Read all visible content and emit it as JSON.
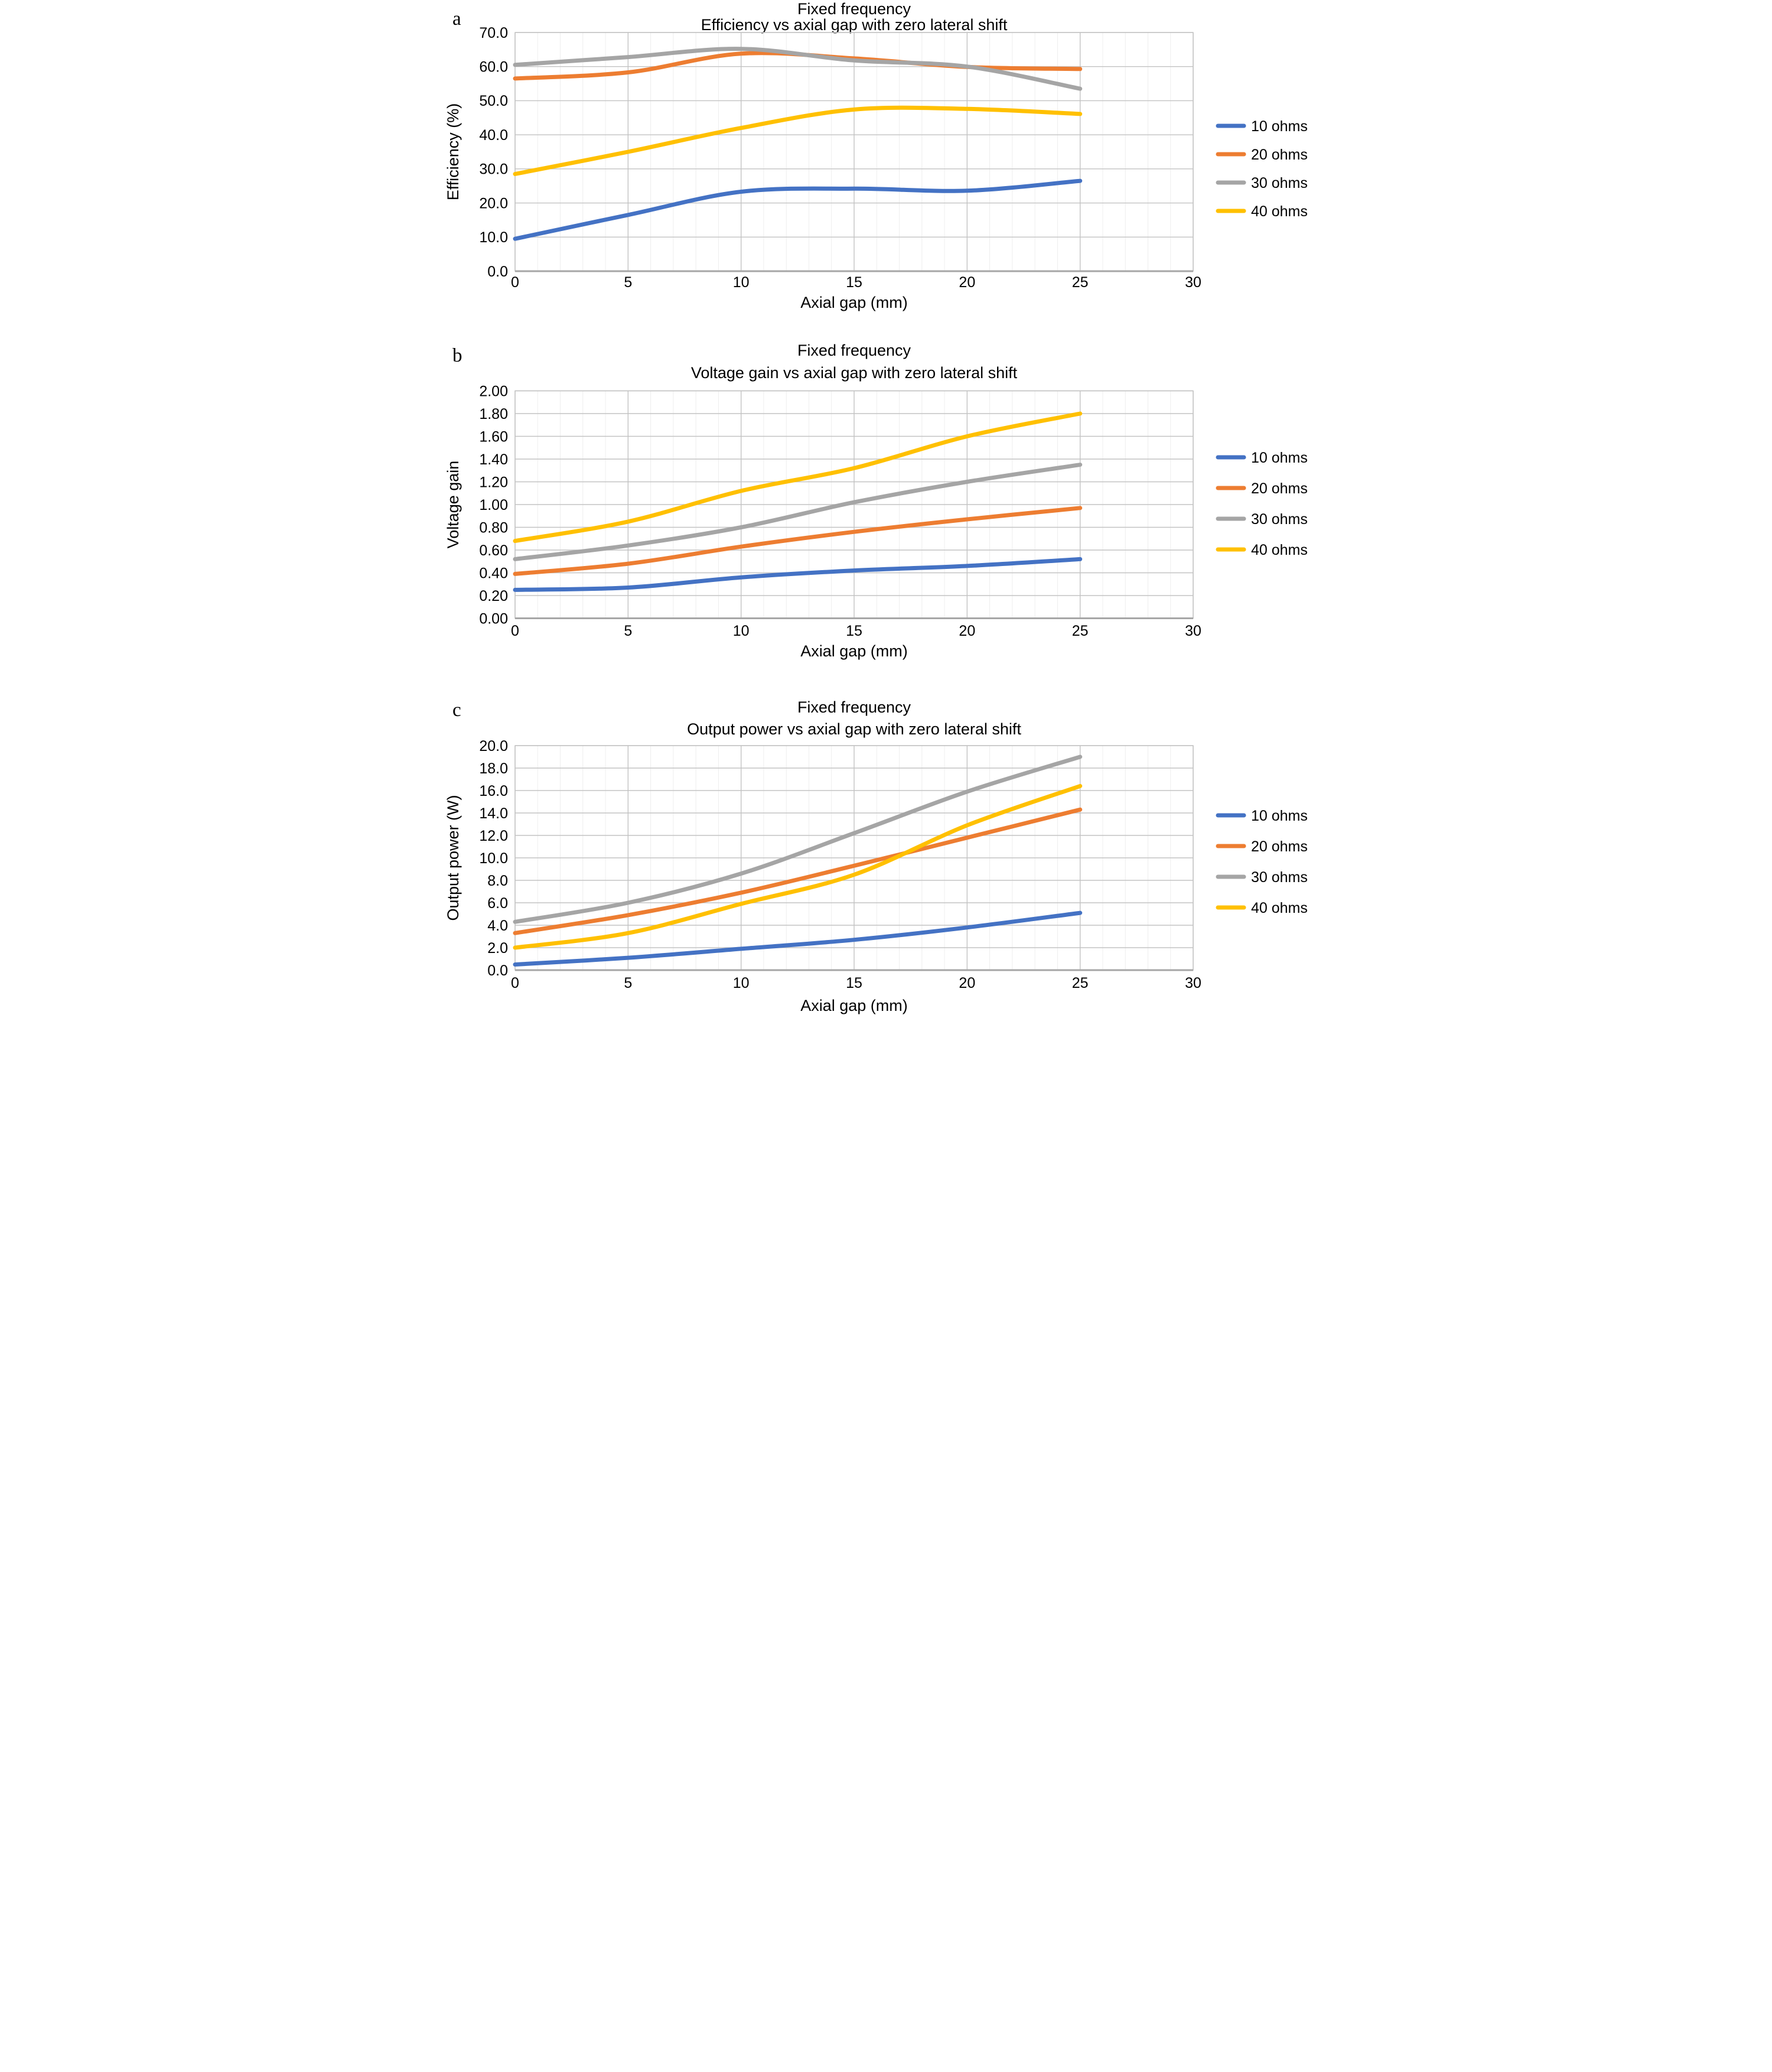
{
  "figure_background": "#ffffff",
  "grid_major_color": "#c3c3c3",
  "grid_minor_color": "#ececec",
  "axis_line_color": "#a6a6a6",
  "chart_data": [
    {
      "type": "line",
      "panel_label": "a",
      "title": "Fixed frequency",
      "subtitle": "Efficiency vs axial gap with zero lateral shift",
      "xlabel": "Axial gap (mm)",
      "ylabel": "Efficiency (%)",
      "x": [
        0,
        5,
        10,
        15,
        20,
        25
      ],
      "xlim": [
        0,
        30
      ],
      "x_major": 5,
      "x_minor": 1,
      "ylim": [
        0,
        70
      ],
      "y_step": 10,
      "y_decimals": 1,
      "grid": true,
      "legend_position": "right",
      "series": [
        {
          "name": "10 ohms",
          "color": "#4472C4",
          "values": [
            9.5,
            16.5,
            23.3,
            24.2,
            23.6,
            26.5
          ]
        },
        {
          "name": "20 ohms",
          "color": "#ED7D31",
          "values": [
            56.5,
            58.3,
            63.8,
            62.4,
            59.9,
            59.3
          ]
        },
        {
          "name": "30 ohms",
          "color": "#A5A5A5",
          "values": [
            60.5,
            62.8,
            65.2,
            61.8,
            60.0,
            53.5
          ]
        },
        {
          "name": "40 ohms",
          "color": "#FFC000",
          "values": [
            28.5,
            35.0,
            42.0,
            47.4,
            47.6,
            46.1
          ]
        }
      ]
    },
    {
      "type": "line",
      "panel_label": "b",
      "title": "Fixed frequency",
      "subtitle": "Voltage gain vs axial gap with zero lateral shift",
      "xlabel": "Axial gap (mm)",
      "ylabel": "Voltage gain",
      "x": [
        0,
        5,
        10,
        15,
        20,
        25
      ],
      "xlim": [
        0,
        30
      ],
      "x_major": 5,
      "x_minor": 1,
      "ylim": [
        0,
        2.0
      ],
      "y_step": 0.2,
      "y_decimals": 2,
      "grid": true,
      "legend_position": "right",
      "series": [
        {
          "name": "10 ohms",
          "color": "#4472C4",
          "values": [
            0.25,
            0.27,
            0.36,
            0.42,
            0.46,
            0.52
          ]
        },
        {
          "name": "20 ohms",
          "color": "#ED7D31",
          "values": [
            0.39,
            0.48,
            0.63,
            0.76,
            0.87,
            0.97
          ]
        },
        {
          "name": "30 ohms",
          "color": "#A5A5A5",
          "values": [
            0.52,
            0.64,
            0.8,
            1.02,
            1.2,
            1.35
          ]
        },
        {
          "name": "40 ohms",
          "color": "#FFC000",
          "values": [
            0.68,
            0.85,
            1.12,
            1.32,
            1.6,
            1.8
          ]
        }
      ]
    },
    {
      "type": "line",
      "panel_label": "c",
      "title": "Fixed frequency",
      "subtitle": "Output power vs axial gap with zero lateral shift",
      "xlabel": "Axial gap (mm)",
      "ylabel": "Output power (W)",
      "x": [
        0,
        5,
        10,
        15,
        20,
        25
      ],
      "xlim": [
        0,
        30
      ],
      "x_major": 5,
      "x_minor": 1,
      "ylim": [
        0,
        20
      ],
      "y_step": 2,
      "y_decimals": 1,
      "grid": true,
      "legend_position": "right",
      "series": [
        {
          "name": "10 ohms",
          "color": "#4472C4",
          "values": [
            0.5,
            1.1,
            1.9,
            2.7,
            3.8,
            5.1
          ]
        },
        {
          "name": "20 ohms",
          "color": "#ED7D31",
          "values": [
            3.3,
            4.9,
            6.9,
            9.3,
            11.8,
            14.3
          ]
        },
        {
          "name": "30 ohms",
          "color": "#A5A5A5",
          "values": [
            4.3,
            6.0,
            8.6,
            12.2,
            15.9,
            19.0
          ]
        },
        {
          "name": "40 ohms",
          "color": "#FFC000",
          "values": [
            2.0,
            3.3,
            5.9,
            8.5,
            12.9,
            16.4
          ]
        }
      ]
    }
  ]
}
